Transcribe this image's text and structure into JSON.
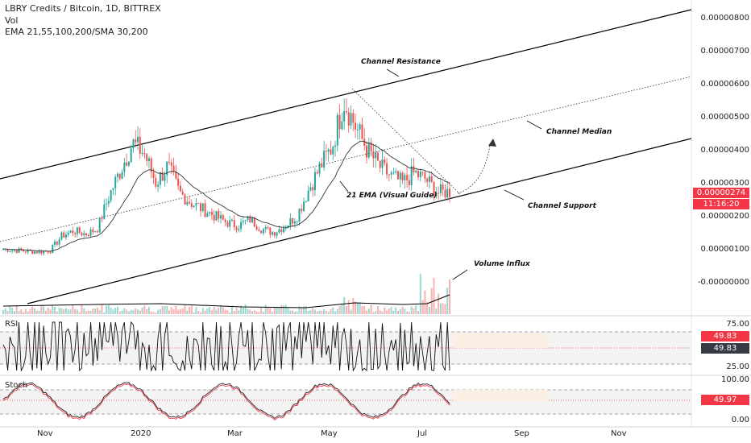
{
  "header": {
    "title": "LBRY Credits / Bitcoin, 1D, BITTREX",
    "vol_label": "Vol",
    "ema_label": "EMA 21,55,100,200/SMA 30,200"
  },
  "annotations": {
    "channel_resistance": "Channel Resistance",
    "channel_median": "Channel Median",
    "channel_support": "Channel Support",
    "ema_guide": "21 EMA (Visual Guide)",
    "volume_influx": "Volume Influx"
  },
  "price_axis": {
    "ticks": [
      "0.00000800",
      "0.00000700",
      "0.00000600",
      "0.00000500",
      "0.00000400",
      "0.00000300",
      "0.00000200",
      "0.00000100",
      "-0.00000000"
    ],
    "current_price": "0.00000274",
    "countdown": "11:16:20"
  },
  "rsi": {
    "label": "RSI",
    "ticks": [
      "75.00",
      "25.00"
    ],
    "value_tag_1": "49.83",
    "value_tag_2": "49.83"
  },
  "stoch": {
    "label": "Stoch",
    "ticks": [
      "100.00",
      "0.00"
    ],
    "value_tag": "49.97"
  },
  "time_axis": {
    "ticks": [
      "Nov",
      "2020",
      "Mar",
      "May",
      "Jul",
      "Sep",
      "Nov"
    ]
  },
  "colors": {
    "up": "#26a69a",
    "down": "#ef5350",
    "tag_red": "#f23645",
    "tag_dark": "#363a45"
  },
  "chart_data": {
    "type": "candlestick",
    "title": "LBRY Credits / Bitcoin, 1D, BITTREX",
    "ylim": [
      -2e-07,
      8.5e-06
    ],
    "close": [
      1e-06,
      9.6e-07,
      9.3e-07,
      9.1e-07,
      9.5e-07,
      1.4e-06,
      1.55e-06,
      1.45e-06,
      1.6e-06,
      2.6e-06,
      3.4e-06,
      4.2e-06,
      3.9e-06,
      3e-06,
      3.5e-06,
      2.7e-06,
      2.4e-06,
      2.2e-06,
      2e-06,
      1.8e-06,
      1.7e-06,
      1.9e-06,
      1.6e-06,
      1.5e-06,
      1.7e-06,
      2e-06,
      2.8e-06,
      3.5e-06,
      4.1e-06,
      5.5e-06,
      4.7e-06,
      4e-06,
      3.5e-06,
      3.2e-06,
      3e-06,
      3.3e-06,
      3.1e-06,
      2.7e-06,
      2.74e-06
    ]
  }
}
